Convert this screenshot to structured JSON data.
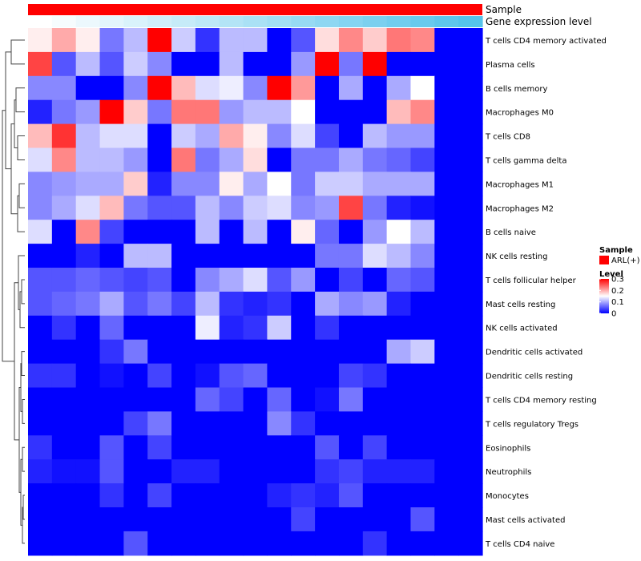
{
  "chart_data": {
    "type": "heatmap",
    "title": "",
    "annotations": [
      {
        "name": "Sample",
        "legend_entry": "ARL(+)",
        "color": "#ff0000"
      },
      {
        "name": "Gene expression level",
        "gradient_from": "#ffffff",
        "gradient_to": "#55c3eb"
      }
    ],
    "legend": {
      "sample_title": "Sample",
      "sample_entry": "ARL(+)",
      "level_title": "Level",
      "level_ticks": [
        0.3,
        0.2,
        0.1,
        0
      ],
      "level_tick_labels": [
        "0.3",
        "0.2",
        "0.1",
        "0"
      ],
      "placement": "right"
    },
    "color_scale": {
      "min": 0,
      "mid": 0.15,
      "max": 0.3,
      "low": "#0000ff",
      "mid_color": "#ffffff",
      "high": "#ff0000"
    },
    "rows": [
      "T cells CD4 memory activated",
      "Plasma cells",
      "B cells memory",
      "Macrophages M0",
      "T cells CD8",
      "T cells gamma delta",
      "Macrophages M1",
      "Macrophages M2",
      "B cells naive",
      "NK cells resting",
      "T cells follicular helper",
      "Mast cells resting",
      "NK cells activated",
      "Dendritic cells activated",
      "Dendritic cells resting",
      "T cells CD4 memory resting",
      "T cells regulatory  Tregs",
      "Eosinophils",
      "Neutrophils",
      "Monocytes",
      "Mast cells activated",
      "T cells CD4 naive"
    ],
    "n_columns": 19,
    "values": [
      [
        0.16,
        0.2,
        0.16,
        0.07,
        0.11,
        0.3,
        0.12,
        0.03,
        0.11,
        0.11,
        0.0,
        0.05,
        0.17,
        0.22,
        0.18,
        0.23,
        0.22,
        null,
        null
      ],
      [
        0.26,
        0.05,
        0.11,
        0.05,
        0.12,
        0.08,
        0.0,
        0.0,
        0.11,
        0.0,
        0.0,
        0.09,
        0.3,
        0.07,
        0.3,
        0.0,
        0.0,
        null,
        null
      ],
      [
        0.08,
        0.08,
        0.0,
        0.0,
        0.08,
        0.3,
        0.19,
        0.13,
        0.14,
        0.08,
        0.3,
        0.21,
        0.0,
        0.1,
        0.0,
        0.1,
        0.15,
        null,
        null
      ],
      [
        0.02,
        0.07,
        0.09,
        0.3,
        0.18,
        0.07,
        0.23,
        0.23,
        0.09,
        0.11,
        0.11,
        0.15,
        0.0,
        0.0,
        0.0,
        0.19,
        0.22,
        null,
        null
      ],
      [
        0.19,
        0.27,
        0.11,
        0.13,
        0.13,
        0.0,
        0.12,
        0.1,
        0.2,
        0.16,
        0.08,
        0.13,
        0.04,
        0.0,
        0.11,
        0.09,
        0.09,
        null,
        null
      ],
      [
        0.13,
        0.22,
        0.11,
        0.11,
        0.09,
        0.0,
        0.23,
        0.07,
        0.1,
        0.17,
        0.0,
        0.07,
        0.07,
        0.1,
        0.07,
        0.06,
        0.04,
        null,
        null
      ],
      [
        0.08,
        0.09,
        0.1,
        0.1,
        0.18,
        0.02,
        0.08,
        0.08,
        0.16,
        0.1,
        0.15,
        0.07,
        0.12,
        0.12,
        0.1,
        0.1,
        0.1,
        null,
        null
      ],
      [
        0.08,
        0.1,
        0.13,
        0.19,
        0.07,
        0.05,
        0.05,
        0.11,
        0.08,
        0.12,
        0.13,
        0.08,
        0.09,
        0.26,
        0.07,
        0.02,
        0.01,
        null,
        null
      ],
      [
        0.13,
        0.0,
        0.22,
        0.04,
        0.0,
        0.0,
        0.0,
        0.11,
        0.0,
        0.11,
        0.0,
        0.16,
        0.06,
        0.0,
        0.09,
        0.15,
        0.11,
        null,
        null
      ],
      [
        0.0,
        0.0,
        0.02,
        0.0,
        0.11,
        0.11,
        0.0,
        0.0,
        0.0,
        0.0,
        0.0,
        0.0,
        0.07,
        0.07,
        0.13,
        0.11,
        0.08,
        null,
        null
      ],
      [
        0.05,
        0.05,
        0.06,
        0.05,
        0.04,
        0.05,
        0.0,
        0.08,
        0.1,
        0.13,
        0.05,
        0.09,
        0.0,
        0.04,
        0.0,
        0.06,
        0.05,
        null,
        null
      ],
      [
        0.05,
        0.06,
        0.07,
        0.1,
        0.05,
        0.07,
        0.04,
        0.11,
        0.03,
        0.02,
        0.03,
        0.0,
        0.1,
        0.08,
        0.09,
        0.02,
        0.0,
        null,
        null
      ],
      [
        0.0,
        0.03,
        0.0,
        0.06,
        0.0,
        0.0,
        0.0,
        0.14,
        0.02,
        0.03,
        0.12,
        0.0,
        0.03,
        0.0,
        0.0,
        0.0,
        0.0,
        null,
        null
      ],
      [
        0.0,
        0.0,
        0.0,
        0.03,
        0.07,
        0.0,
        0.0,
        0.0,
        0.0,
        0.0,
        0.0,
        0.0,
        0.0,
        0.0,
        0.0,
        0.1,
        0.12,
        null,
        null
      ],
      [
        0.03,
        0.03,
        0.0,
        0.01,
        0.0,
        0.04,
        0.0,
        0.01,
        0.05,
        0.06,
        0.0,
        0.0,
        0.0,
        0.04,
        0.03,
        0.0,
        0.0,
        null,
        null
      ],
      [
        0.0,
        0.0,
        0.0,
        0.0,
        0.0,
        0.0,
        0.0,
        0.06,
        0.04,
        0.0,
        0.06,
        0.0,
        0.01,
        0.07,
        0.0,
        0.0,
        0.0,
        null,
        null
      ],
      [
        0.0,
        0.0,
        0.0,
        0.0,
        0.04,
        0.07,
        0.0,
        0.0,
        0.0,
        0.0,
        0.08,
        0.03,
        0.0,
        0.0,
        0.0,
        0.0,
        0.0,
        null,
        null
      ],
      [
        0.03,
        0.0,
        0.0,
        0.05,
        0.0,
        0.04,
        0.0,
        0.0,
        0.0,
        0.0,
        0.0,
        0.0,
        0.05,
        0.0,
        0.04,
        0.0,
        0.0,
        null,
        null
      ],
      [
        0.02,
        0.01,
        0.01,
        0.05,
        0.0,
        0.0,
        0.02,
        0.02,
        0.0,
        0.0,
        0.0,
        0.0,
        0.03,
        0.04,
        0.02,
        0.02,
        0.02,
        null,
        null
      ],
      [
        0.0,
        0.0,
        0.0,
        0.03,
        0.0,
        0.04,
        0.0,
        0.0,
        0.0,
        0.0,
        0.02,
        0.03,
        0.02,
        0.05,
        0.0,
        0.0,
        0.0,
        null,
        null
      ],
      [
        0.0,
        0.0,
        0.0,
        0.0,
        0.0,
        0.0,
        0.0,
        0.0,
        0.0,
        0.0,
        0.0,
        0.04,
        0.0,
        0.0,
        0.0,
        0.0,
        0.05,
        null,
        null
      ],
      [
        0.0,
        0.0,
        0.0,
        0.0,
        0.05,
        0.0,
        0.0,
        0.0,
        0.0,
        0.0,
        0.0,
        0.0,
        0.0,
        0.0,
        0.03,
        0.0,
        0.0,
        null,
        null
      ]
    ]
  }
}
